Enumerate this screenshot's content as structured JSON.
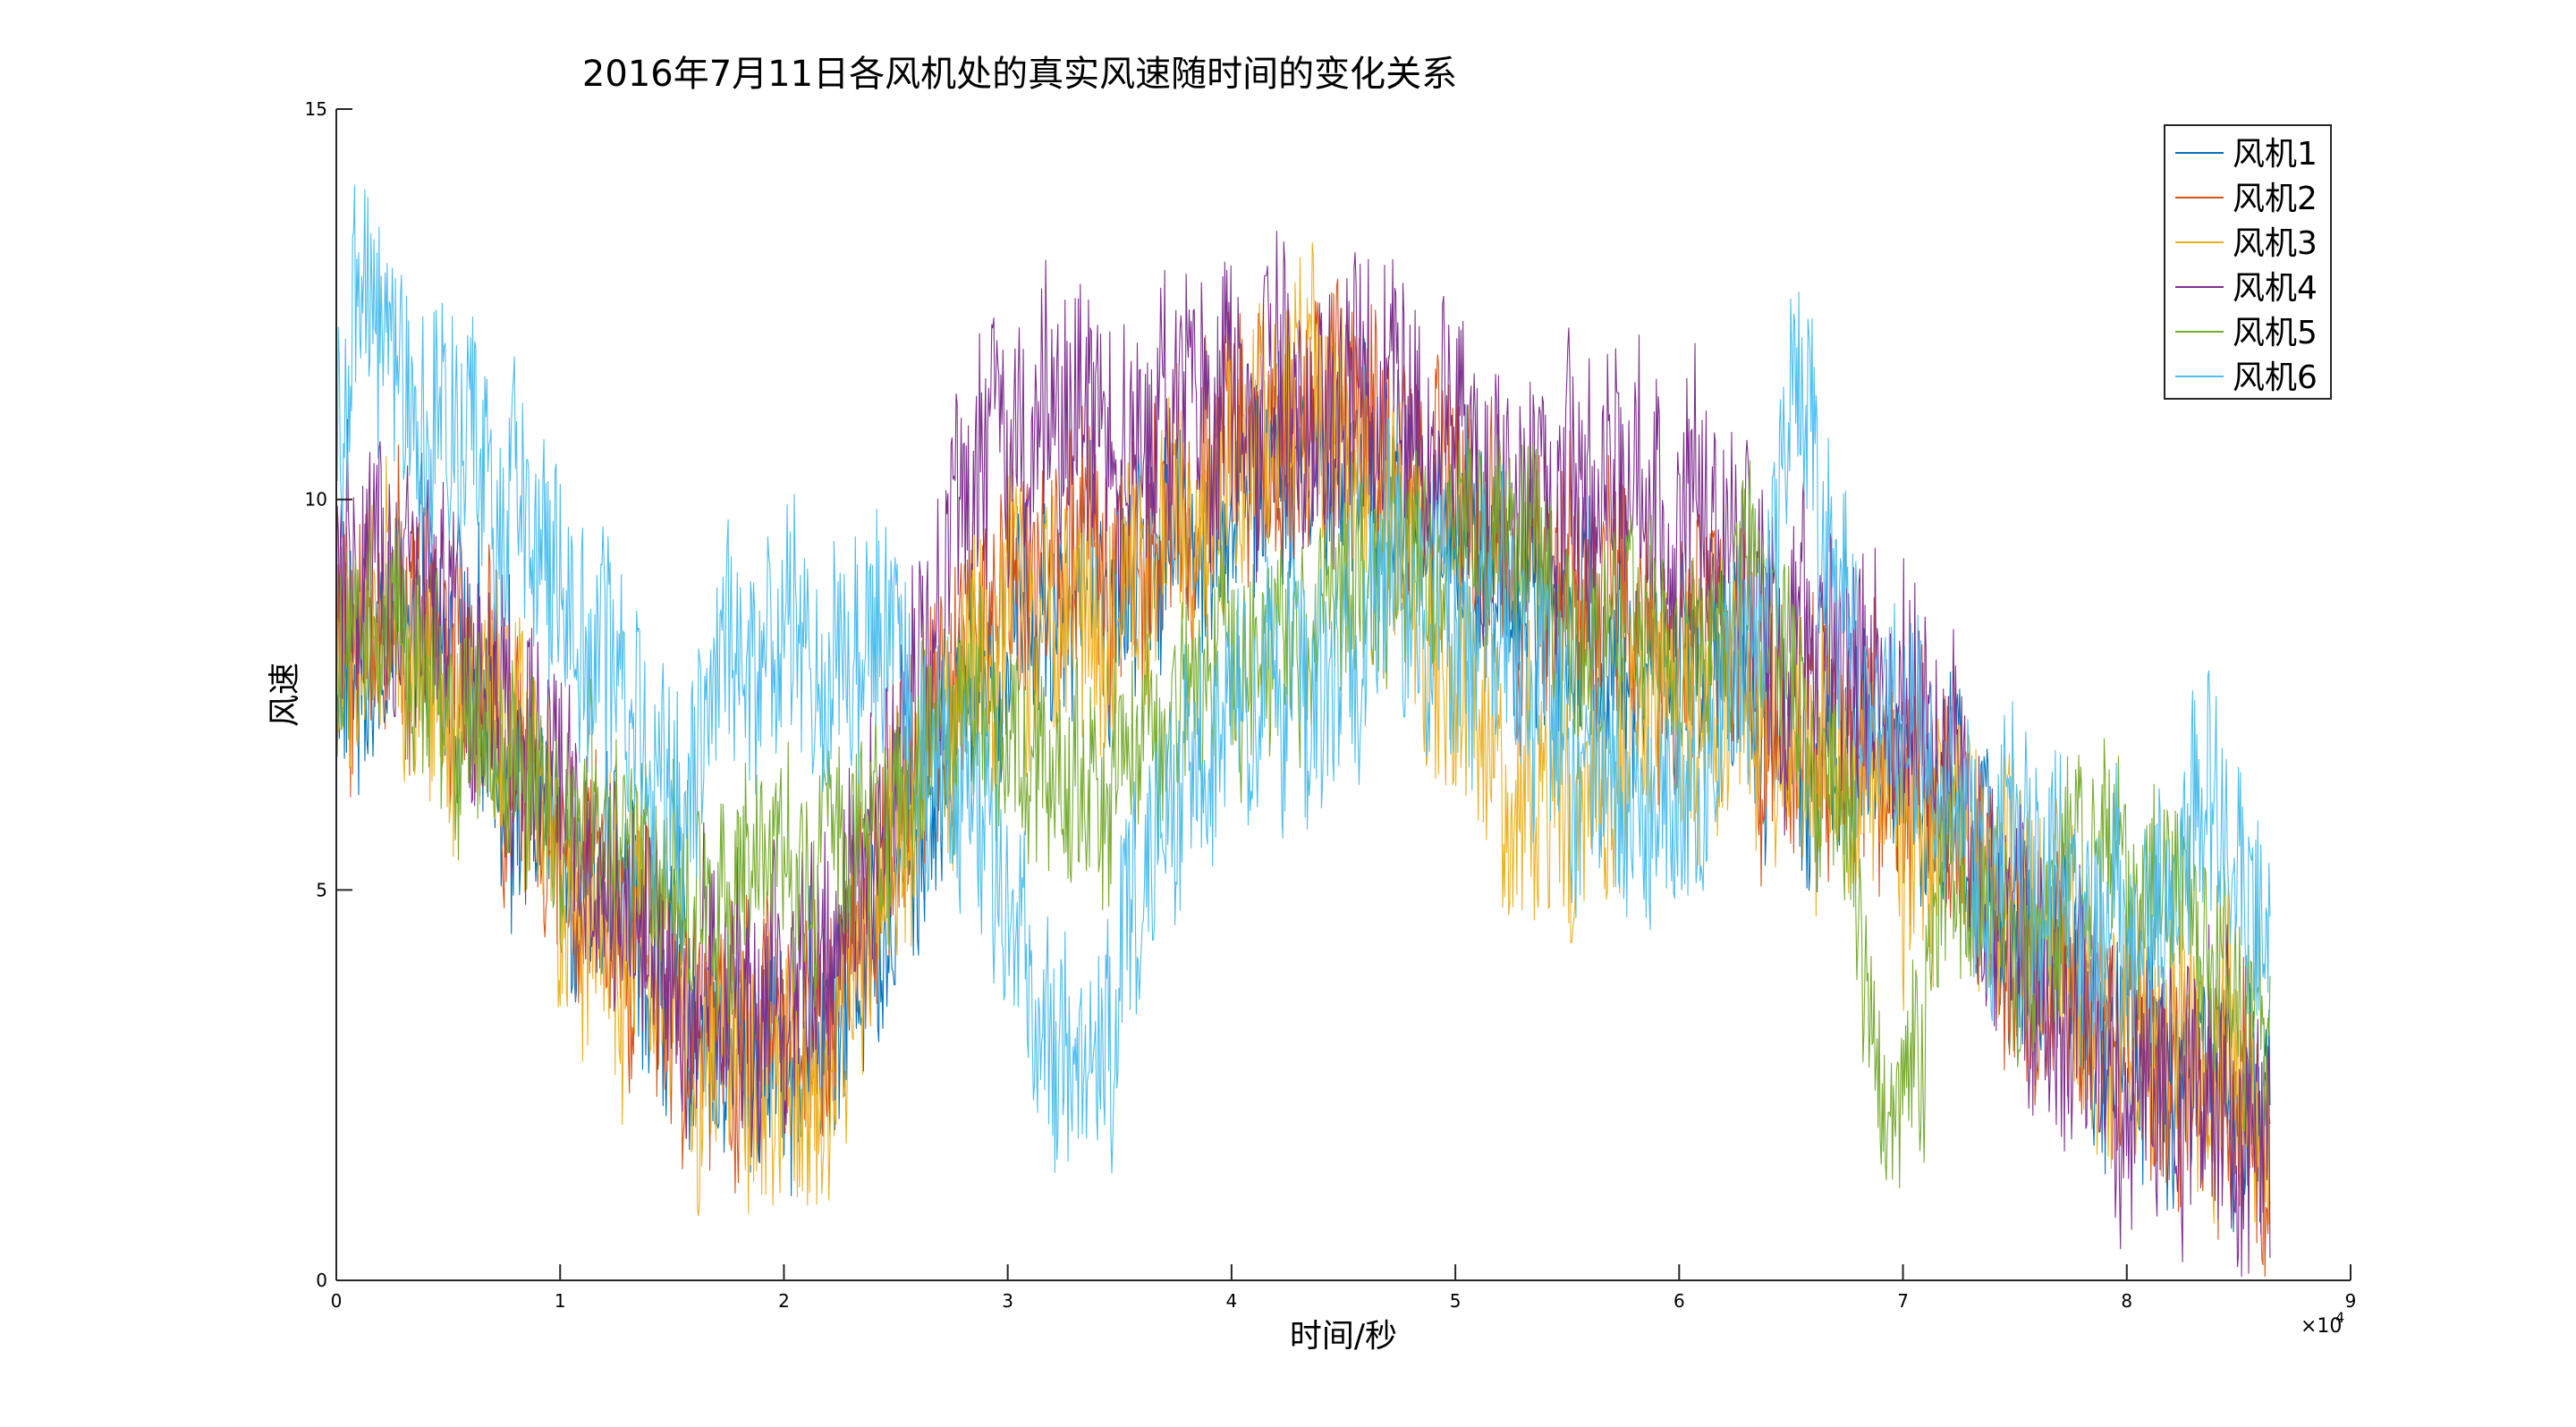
{
  "chart_data": {
    "type": "line",
    "title": "2016年7月11日各风机处的真实风速随时间的变化关系",
    "xlabel": "时间/秒",
    "ylabel": "风速",
    "x_exponent_label": "×10",
    "x_exponent_power": "4",
    "xlim": [
      0,
      90000
    ],
    "ylim": [
      0,
      15
    ],
    "xticks": [
      0,
      10000,
      20000,
      30000,
      40000,
      50000,
      60000,
      70000,
      80000,
      90000
    ],
    "xtick_labels": [
      "0",
      "1",
      "2",
      "3",
      "4",
      "5",
      "6",
      "7",
      "8",
      "9"
    ],
    "yticks": [
      0,
      5,
      10,
      15
    ],
    "ytick_labels": [
      "0",
      "5",
      "10",
      "15"
    ],
    "grid": false,
    "legend_position": "top-right",
    "noise_note": "series are dense high-frequency signals; values below are approximate moving centers with amplitude",
    "series": [
      {
        "name": "风机1",
        "color": "#0072BD",
        "amplitude": 1.3,
        "x": [
          0,
          3000,
          6000,
          9000,
          12000,
          15000,
          17500,
          20000,
          22000,
          24000,
          26000,
          28000,
          30000,
          33000,
          36000,
          40000,
          44000,
          48000,
          52000,
          55000,
          58000,
          62000,
          66000,
          70000,
          73000,
          76000,
          80000,
          84000,
          86400
        ],
        "y": [
          7.5,
          8.5,
          7.5,
          6.0,
          5.0,
          3.8,
          2.8,
          3.0,
          3.2,
          4.5,
          6.0,
          7.5,
          8.5,
          8.8,
          9.2,
          10.0,
          10.5,
          10.0,
          9.0,
          8.5,
          8.0,
          7.5,
          7.0,
          6.5,
          5.5,
          4.0,
          3.0,
          2.5,
          2.0
        ]
      },
      {
        "name": "风机2",
        "color": "#D95319",
        "amplitude": 1.4,
        "x": [
          0,
          3000,
          6000,
          9000,
          12000,
          15000,
          17500,
          20000,
          22000,
          24000,
          26000,
          28000,
          30000,
          33000,
          36000,
          40000,
          44000,
          48000,
          52000,
          55000,
          58000,
          62000,
          66000,
          70000,
          73000,
          76000,
          80000,
          84000,
          86400
        ],
        "y": [
          8.0,
          8.8,
          7.5,
          6.0,
          4.8,
          3.8,
          3.2,
          3.2,
          3.5,
          4.8,
          6.5,
          8.0,
          9.0,
          9.0,
          9.5,
          10.5,
          11.0,
          10.5,
          9.5,
          9.0,
          8.5,
          8.0,
          7.0,
          6.5,
          5.5,
          4.0,
          2.8,
          2.3,
          1.8
        ]
      },
      {
        "name": "风机3",
        "color": "#EDB120",
        "amplitude": 1.5,
        "x": [
          0,
          3000,
          6000,
          9000,
          12000,
          15000,
          17500,
          20000,
          22000,
          24000,
          26000,
          28000,
          30000,
          33000,
          36000,
          40000,
          44000,
          48000,
          52000,
          55000,
          58000,
          62000,
          66000,
          70000,
          73000,
          76000,
          80000,
          84000,
          86400
        ],
        "y": [
          7.8,
          8.5,
          7.2,
          5.8,
          4.5,
          3.5,
          2.8,
          2.4,
          2.6,
          4.5,
          6.5,
          8.0,
          8.5,
          8.5,
          9.0,
          10.5,
          11.5,
          8.5,
          6.5,
          6.0,
          7.0,
          7.5,
          7.0,
          6.0,
          5.5,
          4.0,
          3.0,
          2.5,
          2.0
        ]
      },
      {
        "name": "风机4",
        "color": "#7E2F8E",
        "amplitude": 1.5,
        "x": [
          0,
          3000,
          6000,
          9000,
          12000,
          15000,
          17500,
          20000,
          22000,
          24000,
          26000,
          28000,
          30000,
          33000,
          36000,
          40000,
          44000,
          48000,
          52000,
          55000,
          58000,
          62000,
          66000,
          70000,
          73000,
          76000,
          80000,
          84000,
          86400
        ],
        "y": [
          8.5,
          9.0,
          7.8,
          6.5,
          5.0,
          4.0,
          3.5,
          3.5,
          4.0,
          5.5,
          8.0,
          10.0,
          10.5,
          11.0,
          11.0,
          11.0,
          11.2,
          11.0,
          10.5,
          9.5,
          10.0,
          9.5,
          8.0,
          7.5,
          6.0,
          3.5,
          2.6,
          2.5,
          2.0
        ]
      },
      {
        "name": "风机5",
        "color": "#77AC30",
        "amplitude": 1.2,
        "x": [
          0,
          3000,
          6000,
          9000,
          12000,
          15000,
          17500,
          20000,
          22000,
          24000,
          26000,
          28000,
          30000,
          33000,
          35000,
          38000,
          42000,
          46000,
          50000,
          53000,
          56000,
          60000,
          63000,
          66000,
          68000,
          69500,
          70500,
          72000,
          75000,
          78000,
          80000,
          83000,
          86400
        ],
        "y": [
          8.0,
          8.0,
          7.0,
          6.5,
          5.5,
          5.0,
          5.0,
          5.2,
          5.5,
          5.8,
          6.5,
          7.5,
          7.0,
          6.0,
          6.5,
          7.5,
          8.5,
          8.8,
          9.5,
          9.5,
          8.0,
          8.5,
          9.0,
          7.0,
          5.0,
          2.0,
          3.0,
          5.0,
          4.5,
          5.0,
          5.5,
          4.5,
          3.5
        ]
      },
      {
        "name": "风机6",
        "color": "#4DBEEE",
        "amplitude": 1.4,
        "x": [
          0,
          1500,
          3000,
          5000,
          7000,
          9000,
          11000,
          13000,
          15000,
          17000,
          19000,
          21000,
          23000,
          25000,
          27000,
          29000,
          31000,
          33000,
          34500,
          36000,
          38000,
          40000,
          42000,
          44000,
          46000,
          48000,
          50000,
          52000,
          54000,
          56000,
          58000,
          60000,
          62000,
          64000,
          65000,
          66000,
          68000,
          70000,
          72000,
          74000,
          76000,
          78000,
          80000,
          82000,
          84000,
          86400
        ],
        "y": [
          11.0,
          12.5,
          11.5,
          10.5,
          10.0,
          9.5,
          8.5,
          7.5,
          6.5,
          7.5,
          8.0,
          8.0,
          8.2,
          8.0,
          7.0,
          5.5,
          4.0,
          3.0,
          3.2,
          4.5,
          6.0,
          7.0,
          7.5,
          8.0,
          8.2,
          8.5,
          8.5,
          8.0,
          7.5,
          6.5,
          6.0,
          6.0,
          7.0,
          9.0,
          10.5,
          10.0,
          8.0,
          7.0,
          6.0,
          5.5,
          5.0,
          4.5,
          4.5,
          5.0,
          6.0,
          4.5
        ]
      }
    ]
  }
}
